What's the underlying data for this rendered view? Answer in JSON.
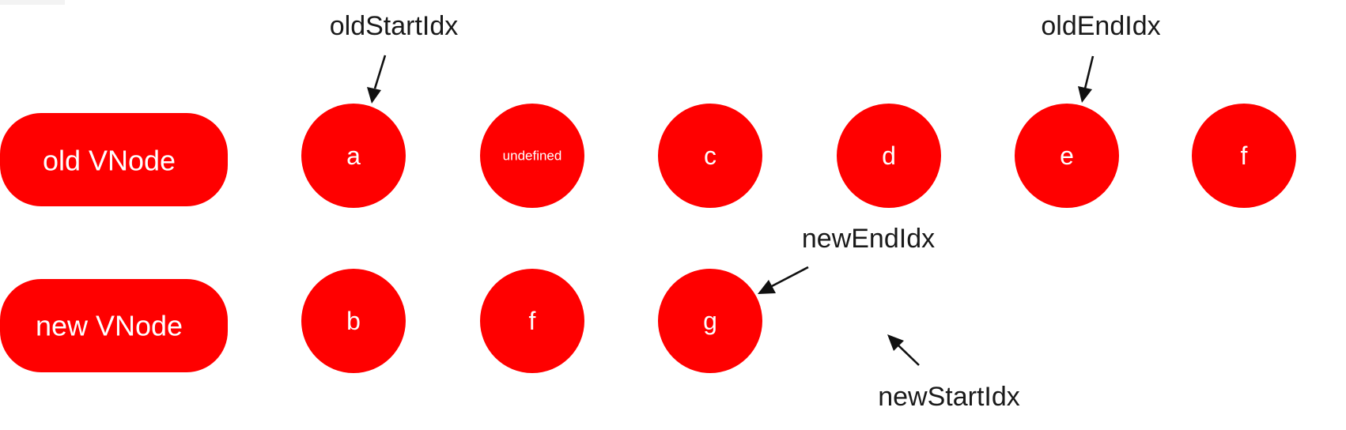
{
  "colors": {
    "node_fill": "#ff0000",
    "label_text": "#ffffff",
    "pointer_text": "#1a1a1a",
    "arrow": "#111111"
  },
  "rows": {
    "old": {
      "label": "old VNode",
      "nodes": [
        "a",
        "undefined",
        "c",
        "d",
        "e",
        "f"
      ]
    },
    "new": {
      "label": "new VNode",
      "nodes": [
        "b",
        "f",
        "g"
      ]
    }
  },
  "pointers": {
    "old_start": "oldStartIdx",
    "old_end": "oldEndIdx",
    "new_end": "newEndIdx",
    "new_start": "newStartIdx"
  }
}
